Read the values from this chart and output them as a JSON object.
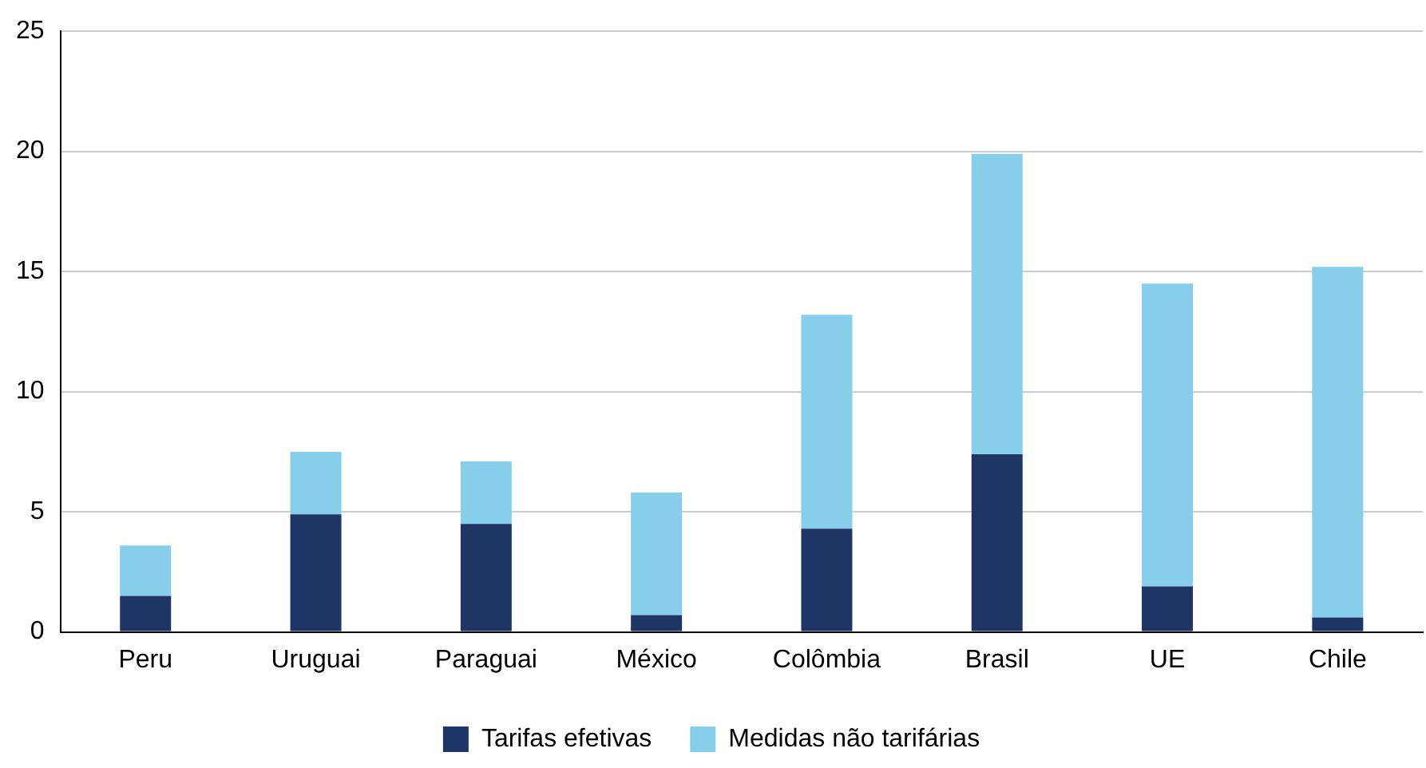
{
  "chart_data": {
    "type": "bar",
    "stacked": true,
    "categories": [
      "Peru",
      "Uruguai",
      "Paraguai",
      "México",
      "Colômbia",
      "Brasil",
      "UE",
      "Chile"
    ],
    "series": [
      {
        "name": "Tarifas efetivas",
        "color": "#1f3566",
        "values": [
          1.5,
          4.9,
          4.5,
          0.7,
          4.3,
          7.4,
          1.9,
          0.6
        ]
      },
      {
        "name": "Medidas não tarifárias",
        "color": "#87ceeb",
        "values": [
          2.1,
          2.6,
          2.6,
          5.1,
          8.9,
          12.5,
          12.6,
          14.6
        ]
      }
    ],
    "ylim": [
      0,
      25
    ],
    "yticks": [
      0,
      5,
      10,
      15,
      20,
      25
    ],
    "grid": "y",
    "legend": "bottom"
  }
}
